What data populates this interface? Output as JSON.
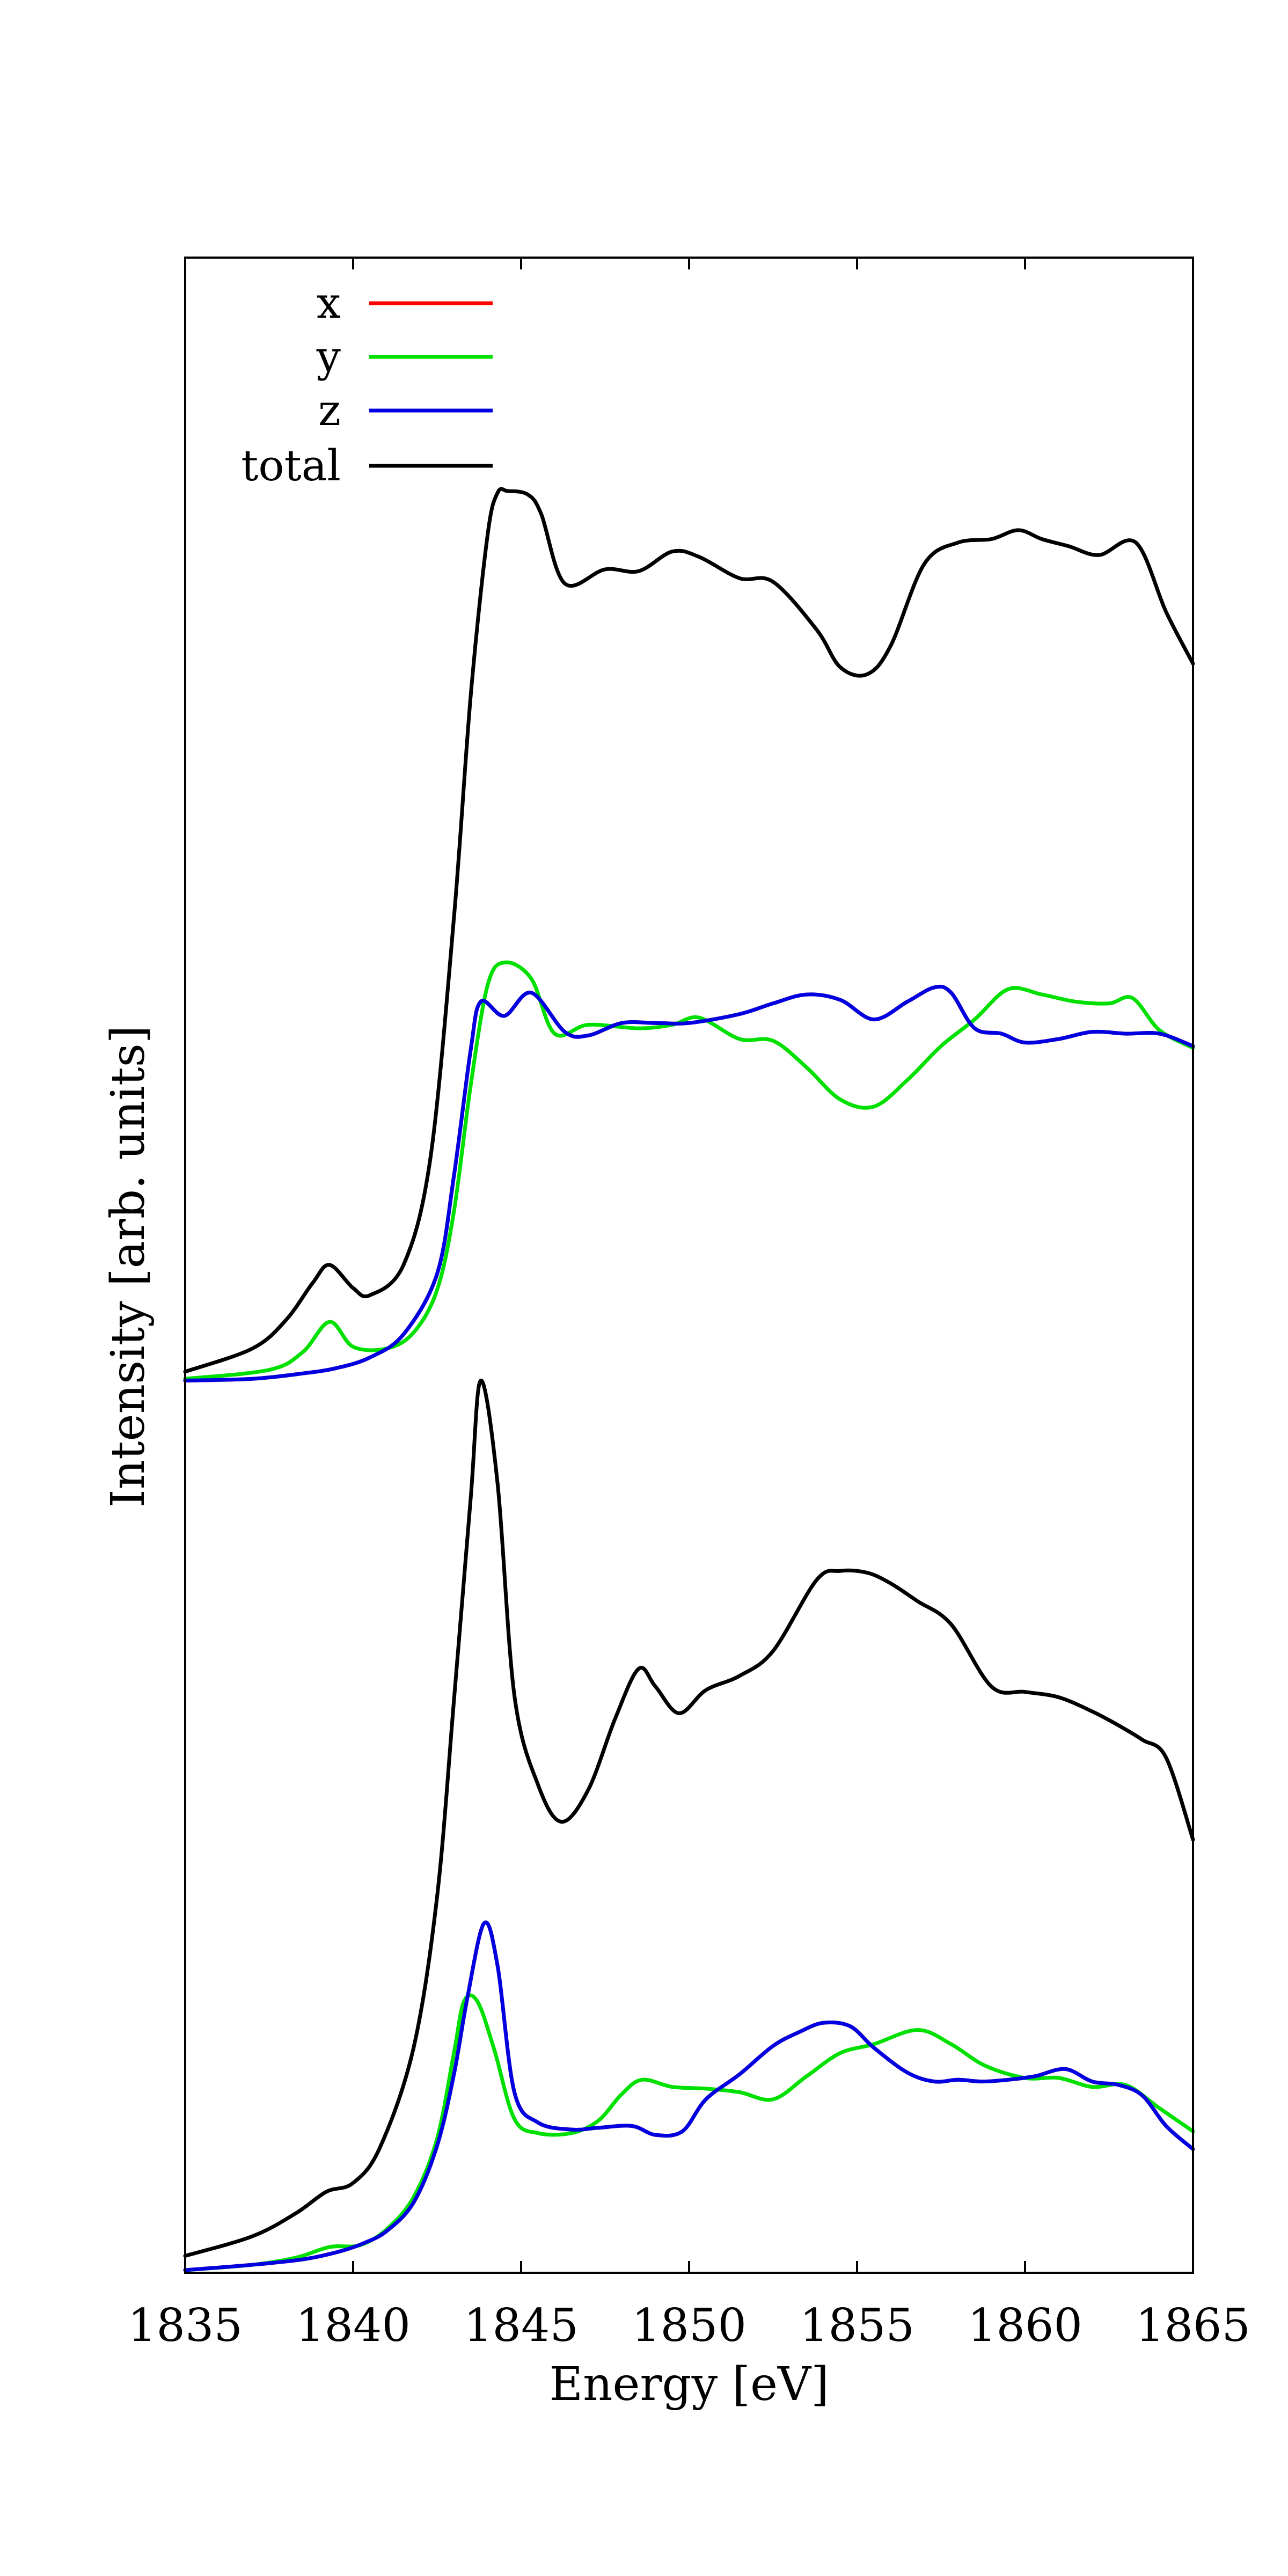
{
  "chart_data": {
    "type": "line",
    "xlabel": "Energy [eV]",
    "ylabel": "Intensity [arb. units]",
    "xlim": [
      1835,
      1865
    ],
    "ylim": [
      0,
      100
    ],
    "xticks": [
      1835,
      1840,
      1845,
      1850,
      1855,
      1860,
      1865
    ],
    "yticks_shown": false,
    "grid": false,
    "legend_position": "top-left",
    "legend": [
      {
        "name": "x",
        "color": "#ff0000"
      },
      {
        "name": "y",
        "color": "#00e000"
      },
      {
        "name": "z",
        "color": "#0000e0"
      },
      {
        "name": "total",
        "color": "#000000"
      }
    ],
    "panels": [
      {
        "position": "upper",
        "series": [
          {
            "name": "total",
            "color": "#000000",
            "x": [
              1835,
              1837,
              1838,
              1838.8,
              1839.3,
              1840,
              1840.5,
              1841.5,
              1842.3,
              1843,
              1843.5,
              1844,
              1844.3,
              1844.6,
              1845.2,
              1845.6,
              1846.3,
              1847.5,
              1848.5,
              1849.5,
              1850.3,
              1851.5,
              1852.5,
              1853.8,
              1854.5,
              1855.3,
              1856,
              1857,
              1858,
              1859,
              1859.8,
              1860.5,
              1861.3,
              1862.2,
              1863.3,
              1864.2,
              1865
            ],
            "y": [
              50.5,
              51.8,
              53.4,
              55.5,
              56.5,
              55.2,
              54.8,
              56.5,
              62.5,
              76,
              88.5,
              97.5,
              99.9,
              100,
              99.8,
              98.7,
              94.8,
              95.6,
              95.5,
              96.6,
              96.3,
              95.1,
              94.9,
              92.2,
              90.1,
              89.7,
              91.3,
              95.9,
              97.1,
              97.3,
              97.8,
              97.3,
              96.9,
              96.4,
              97.1,
              93.2,
              90.3
            ]
          },
          {
            "name": "y",
            "color": "#00e000",
            "x": [
              1835,
              1837.5,
              1838.5,
              1839.3,
              1840,
              1841,
              1841.8,
              1842.5,
              1843,
              1843.5,
              1844,
              1844.5,
              1845.3,
              1846,
              1847,
              1848.5,
              1849.5,
              1850.3,
              1851.5,
              1852.5,
              1853.5,
              1854.5,
              1855.5,
              1856.5,
              1857.5,
              1858.5,
              1859.5,
              1860.5,
              1861.5,
              1862.5,
              1863.2,
              1864,
              1865
            ],
            "y": [
              50.1,
              50.6,
              51.6,
              53.3,
              51.9,
              51.8,
              52.7,
              55.1,
              59.5,
              66.6,
              72.2,
              73.5,
              72.6,
              69.5,
              70.0,
              69.8,
              70.0,
              70.4,
              69.2,
              69.1,
              67.6,
              65.8,
              65.4,
              66.9,
              68.8,
              70.3,
              72.0,
              71.7,
              71.3,
              71.2,
              71.5,
              69.7,
              68.7
            ]
          },
          {
            "name": "z",
            "color": "#0000e0",
            "x": [
              1835,
              1837,
              1838.5,
              1839.5,
              1840.5,
              1841.5,
              1842.5,
              1843,
              1843.5,
              1843.8,
              1844.5,
              1845.3,
              1846.3,
              1847,
              1848,
              1849,
              1850,
              1851.5,
              1852.5,
              1853.5,
              1854.5,
              1855.5,
              1856.5,
              1857.3,
              1857.8,
              1858.5,
              1859.3,
              1860,
              1861,
              1862,
              1863,
              1864,
              1865
            ],
            "y": [
              50.0,
              50.1,
              50.4,
              50.7,
              51.3,
              52.6,
              56.0,
              61.5,
              68.6,
              71.3,
              70.5,
              71.8,
              69.6,
              69.4,
              70.1,
              70.1,
              70.1,
              70.6,
              71.2,
              71.7,
              71.4,
              70.3,
              71.3,
              72.1,
              71.8,
              69.8,
              69.5,
              69.0,
              69.2,
              69.6,
              69.5,
              69.5,
              68.8
            ]
          },
          {
            "name": "x",
            "color": "#ff0000",
            "x": [
              1835,
              1837,
              1838.5,
              1839.5,
              1840.5,
              1841.5,
              1842.5,
              1843,
              1843.5,
              1843.8,
              1844.5,
              1845.3,
              1846.3,
              1847,
              1848,
              1849,
              1850,
              1851.5,
              1852.5,
              1853.5,
              1854.5,
              1855.5,
              1856.5,
              1857.3,
              1857.8,
              1858.5,
              1859.3,
              1860,
              1861,
              1862,
              1863,
              1864,
              1865
            ],
            "y": [
              50.0,
              50.1,
              50.4,
              50.7,
              51.3,
              52.6,
              56.0,
              61.5,
              68.6,
              71.3,
              70.5,
              71.8,
              69.6,
              69.4,
              70.1,
              70.1,
              70.1,
              70.6,
              71.2,
              71.7,
              71.4,
              70.3,
              71.3,
              72.1,
              71.8,
              69.8,
              69.5,
              69.0,
              69.2,
              69.6,
              69.5,
              69.5,
              68.8
            ]
          }
        ]
      },
      {
        "position": "lower",
        "series": [
          {
            "name": "total",
            "color": "#000000",
            "x": [
              1835,
              1837,
              1838.3,
              1839.2,
              1840,
              1840.8,
              1841.8,
              1842.5,
              1843,
              1843.5,
              1843.8,
              1844.3,
              1844.8,
              1845.5,
              1846.2,
              1847,
              1847.8,
              1848.5,
              1849,
              1849.7,
              1850.5,
              1851.5,
              1852.5,
              1853.8,
              1854.5,
              1855.3,
              1856,
              1856.8,
              1857.8,
              1859,
              1860,
              1861,
              1862,
              1862.8,
              1863.5,
              1864.2,
              1865
            ],
            "y": [
              0.8,
              1.9,
              3.2,
              4.4,
              4.9,
              6.9,
              12.5,
              21,
              32,
              43.4,
              50.0,
              44.2,
              32.3,
              27.3,
              25.2,
              27.0,
              31.0,
              33.8,
              32.8,
              31.3,
              32.6,
              33.4,
              34.8,
              38.8,
              39.3,
              39.2,
              38.6,
              37.6,
              36.3,
              32.8,
              32.5,
              32.2,
              31.4,
              30.6,
              29.8,
              28.8,
              24.2
            ]
          },
          {
            "name": "y",
            "color": "#00e000",
            "x": [
              1835,
              1837,
              1838.3,
              1839.3,
              1840.2,
              1841,
              1841.8,
              1842.5,
              1843,
              1843.3,
              1843.7,
              1844.2,
              1844.8,
              1845.5,
              1846.5,
              1847.3,
              1848,
              1848.6,
              1849.5,
              1850.5,
              1851.5,
              1852.5,
              1853.5,
              1854.5,
              1855.5,
              1856.8,
              1857.8,
              1858.8,
              1860,
              1861,
              1862,
              1863,
              1864,
              1865
            ],
            "y": [
              0,
              0.3,
              0.7,
              1.3,
              1.4,
              2.3,
              4.1,
              7.4,
              12.2,
              15.1,
              15.1,
              12.4,
              8.5,
              7.7,
              7.7,
              8.4,
              9.9,
              10.7,
              10.3,
              10.2,
              10.0,
              9.6,
              10.9,
              12.2,
              12.7,
              13.5,
              12.7,
              11.5,
              10.8,
              10.8,
              10.3,
              10.4,
              9.1,
              7.8
            ]
          },
          {
            "name": "z",
            "color": "#0000e0",
            "x": [
              1835,
              1837,
              1838.5,
              1839.5,
              1840.3,
              1841,
              1841.8,
              1842.5,
              1843,
              1843.4,
              1843.9,
              1844.3,
              1844.8,
              1845.5,
              1846.5,
              1847.3,
              1848.3,
              1849,
              1849.8,
              1850.5,
              1851.5,
              1852.5,
              1853.3,
              1854,
              1854.8,
              1855.5,
              1856.5,
              1857.3,
              1858,
              1858.7,
              1859.5,
              1860.3,
              1861.2,
              1862,
              1862.8,
              1863.5,
              1864.2,
              1865
            ],
            "y": [
              0,
              0.3,
              0.6,
              1.0,
              1.5,
              2.2,
              3.8,
              7.0,
              11.0,
              15.3,
              19.5,
              17.1,
              10.0,
              8.3,
              7.9,
              8.0,
              8.1,
              7.6,
              7.8,
              9.6,
              11.0,
              12.6,
              13.4,
              13.9,
              13.7,
              12.5,
              11.1,
              10.6,
              10.7,
              10.6,
              10.7,
              10.9,
              11.3,
              10.6,
              10.4,
              9.8,
              8.1,
              6.8
            ]
          },
          {
            "name": "x",
            "color": "#ff0000",
            "x": [
              1835,
              1837,
              1838.5,
              1839.5,
              1840.3,
              1841,
              1841.8,
              1842.5,
              1843,
              1843.4,
              1843.9,
              1844.3,
              1844.8,
              1845.5,
              1846.5,
              1847.3,
              1848.3,
              1849,
              1849.8,
              1850.5,
              1851.5,
              1852.5,
              1853.3,
              1854,
              1854.8,
              1855.5,
              1856.5,
              1857.3,
              1858,
              1858.7,
              1859.5,
              1860.3,
              1861.2,
              1862,
              1862.8,
              1863.5,
              1864.2,
              1865
            ],
            "y": [
              0,
              0.3,
              0.6,
              1.0,
              1.5,
              2.2,
              3.8,
              7.0,
              11.0,
              15.3,
              19.5,
              17.1,
              10.0,
              8.3,
              7.9,
              8.0,
              8.1,
              7.6,
              7.8,
              9.6,
              11.0,
              12.6,
              13.4,
              13.9,
              13.7,
              12.5,
              11.1,
              10.6,
              10.7,
              10.6,
              10.7,
              10.9,
              11.3,
              10.6,
              10.4,
              9.8,
              8.1,
              6.8
            ]
          }
        ]
      }
    ]
  }
}
